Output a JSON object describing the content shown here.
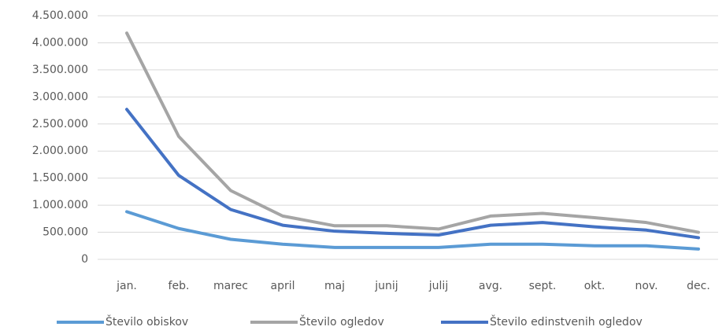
{
  "chart_data": {
    "type": "line",
    "categories": [
      "jan.",
      "feb.",
      "marec",
      "april",
      "maj",
      "junij",
      "julij",
      "avg.",
      "sept.",
      "okt.",
      "nov.",
      "dec."
    ],
    "series": [
      {
        "name": "Število obiskov",
        "color": "#5b9bd5",
        "values": [
          880000,
          570000,
          370000,
          280000,
          220000,
          220000,
          220000,
          280000,
          280000,
          250000,
          250000,
          190000
        ]
      },
      {
        "name": "Število ogledov",
        "color": "#a5a5a5",
        "values": [
          4180000,
          2270000,
          1270000,
          800000,
          620000,
          620000,
          560000,
          800000,
          850000,
          770000,
          680000,
          500000
        ]
      },
      {
        "name": "Število edinstvenih ogledov",
        "color": "#4472c4",
        "values": [
          2770000,
          1550000,
          920000,
          630000,
          520000,
          480000,
          450000,
          630000,
          680000,
          600000,
          540000,
          400000
        ]
      }
    ],
    "ylim": [
      0,
      4500000
    ],
    "yticks": [
      0,
      {
        "value": 500000,
        "label": "500.000"
      },
      {
        "value": 1000000,
        "label": "1.000.000"
      },
      {
        "value": 1500000,
        "label": "1.500.000"
      },
      {
        "value": 2000000,
        "label": "2.000.000"
      },
      {
        "value": 2500000,
        "label": "2.500.000"
      },
      {
        "value": 3000000,
        "label": "3.000.000"
      },
      {
        "value": 3500000,
        "label": "3.500.000"
      },
      {
        "value": 4000000,
        "label": "4.000.000"
      },
      {
        "value": 4500000,
        "label": "4.500.000"
      }
    ],
    "grid": true,
    "legend": "bottom"
  }
}
